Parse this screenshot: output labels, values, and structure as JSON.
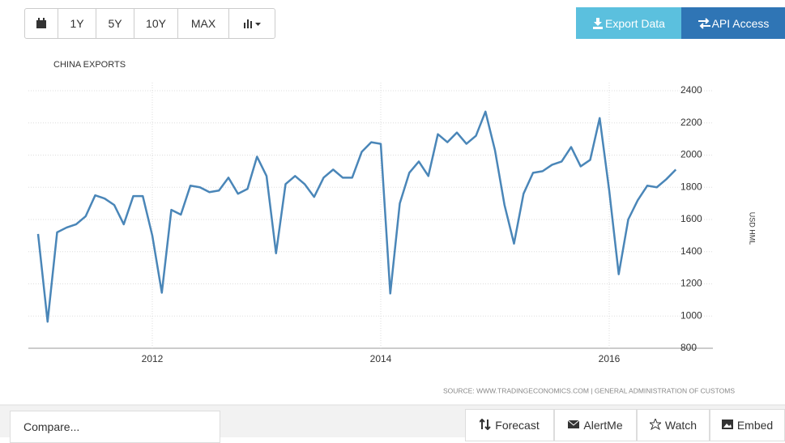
{
  "toolbar": {
    "ranges": [
      "1Y",
      "5Y",
      "10Y",
      "MAX"
    ],
    "export": "Export Data",
    "api": "API Access"
  },
  "chart_data": {
    "type": "line",
    "title": "CHINA EXPORTS",
    "y_label": "USD HML",
    "categories": [
      null,
      null,
      null,
      null,
      null,
      null,
      null,
      null,
      null,
      null,
      null,
      null,
      "2012",
      null,
      null,
      null,
      null,
      null,
      null,
      null,
      null,
      null,
      null,
      null,
      null,
      null,
      null,
      null,
      null,
      null,
      null,
      null,
      null,
      null,
      null,
      null,
      "2014",
      null,
      null,
      null,
      null,
      null,
      null,
      null,
      null,
      null,
      null,
      null,
      null,
      null,
      null,
      null,
      null,
      null,
      null,
      null,
      null,
      null,
      null,
      null,
      "2016",
      null,
      null,
      null,
      null,
      null,
      null,
      null
    ],
    "series": [
      {
        "name": "China Exports",
        "color": "#4a86b8",
        "values": [
          1510,
          965,
          1520,
          1550,
          1570,
          1620,
          1750,
          1730,
          1690,
          1570,
          1745,
          1745,
          1500,
          1145,
          1660,
          1630,
          1810,
          1800,
          1770,
          1780,
          1860,
          1760,
          1790,
          1990,
          1870,
          1390,
          1820,
          1870,
          1820,
          1740,
          1860,
          1910,
          1860,
          1860,
          2020,
          2080,
          2070,
          1140,
          1700,
          1890,
          1960,
          1870,
          2130,
          2080,
          2140,
          2070,
          2120,
          2270,
          2030,
          1690,
          1450,
          1760,
          1890,
          1900,
          1940,
          1960,
          2050,
          1930,
          1970,
          2230,
          1780,
          1260,
          1600,
          1720,
          1810,
          1800,
          1850,
          1910
        ]
      }
    ],
    "ylim": [
      800,
      2400
    ],
    "yticks": [
      800,
      1000,
      1200,
      1400,
      1600,
      1800,
      2000,
      2200,
      2400
    ],
    "grid": true,
    "source": "SOURCE: WWW.TRADINGECONOMICS.COM | GENERAL ADMINISTRATION OF CUSTOMS"
  },
  "footer": {
    "compare": "Compare...",
    "buttons": [
      "Forecast",
      "AlertMe",
      "Watch",
      "Embed"
    ]
  }
}
